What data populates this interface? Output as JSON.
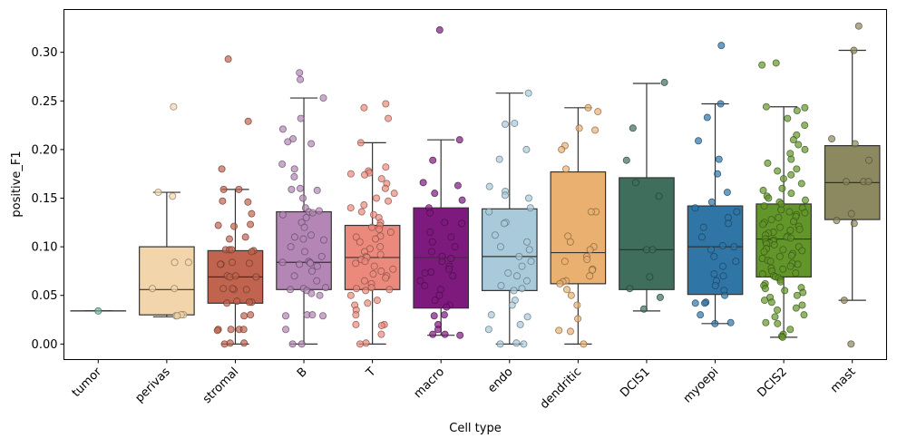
{
  "chart_data": {
    "type": "box",
    "title": "",
    "xlabel": "Cell type",
    "ylabel": "positive_F1",
    "ylim": [
      -0.016,
      0.344
    ],
    "yticks": [
      "0.00",
      "0.05",
      "0.10",
      "0.15",
      "0.20",
      "0.25",
      "0.30"
    ],
    "ytick_values": [
      0,
      0.05,
      0.1,
      0.15,
      0.2,
      0.25,
      0.3
    ],
    "grid": false,
    "categories": [
      "tumor",
      "perivas",
      "stromal",
      "B",
      "T",
      "macro",
      "endo",
      "dendritic",
      "DCIS1",
      "myoepi",
      "DCIS2",
      "mast"
    ],
    "colors": [
      "#6fb89a",
      "#f3d5ab",
      "#c0644f",
      "#b386b5",
      "#eb8a7c",
      "#7e1a7e",
      "#a9cadb",
      "#e9b070",
      "#3f6e5c",
      "#2f75a6",
      "#62962a",
      "#8c8860"
    ],
    "boxes": [
      {
        "whislo": 0.034,
        "q1": 0.034,
        "med": 0.034,
        "q3": 0.034,
        "whishi": 0.034
      },
      {
        "whislo": 0.028,
        "q1": 0.03,
        "med": 0.056,
        "q3": 0.1,
        "whishi": 0.156
      },
      {
        "whislo": 0.0,
        "q1": 0.042,
        "med": 0.069,
        "q3": 0.096,
        "whishi": 0.159
      },
      {
        "whislo": 0.0,
        "q1": 0.056,
        "med": 0.084,
        "q3": 0.136,
        "whishi": 0.253
      },
      {
        "whislo": 0.0,
        "q1": 0.056,
        "med": 0.089,
        "q3": 0.122,
        "whishi": 0.207
      },
      {
        "whislo": 0.009,
        "q1": 0.037,
        "med": 0.089,
        "q3": 0.14,
        "whishi": 0.21
      },
      {
        "whislo": 0.0,
        "q1": 0.055,
        "med": 0.09,
        "q3": 0.139,
        "whishi": 0.258
      },
      {
        "whislo": 0.0,
        "q1": 0.062,
        "med": 0.094,
        "q3": 0.177,
        "whishi": 0.243
      },
      {
        "whislo": 0.034,
        "q1": 0.056,
        "med": 0.097,
        "q3": 0.171,
        "whishi": 0.268
      },
      {
        "whislo": 0.021,
        "q1": 0.051,
        "med": 0.1,
        "q3": 0.142,
        "whishi": 0.247
      },
      {
        "whislo": 0.007,
        "q1": 0.069,
        "med": 0.108,
        "q3": 0.144,
        "whishi": 0.244
      },
      {
        "whislo": 0.045,
        "q1": 0.128,
        "med": 0.166,
        "q3": 0.204,
        "whishi": 0.302
      }
    ],
    "points": [
      [
        0.034
      ],
      [
        0.244,
        0.156,
        0.152,
        0.084,
        0.084,
        0.057,
        0.057,
        0.03,
        0.029,
        0.03,
        0.029
      ],
      [
        0.293,
        0.229,
        0.18,
        0.159,
        0.159,
        0.147,
        0.146,
        0.134,
        0.123,
        0.122,
        0.121,
        0.11,
        0.108,
        0.097,
        0.097,
        0.096,
        0.095,
        0.097,
        0.084,
        0.083,
        0.082,
        0.082,
        0.07,
        0.069,
        0.07,
        0.069,
        0.056,
        0.056,
        0.057,
        0.057,
        0.043,
        0.043,
        0.042,
        0.044,
        0.03,
        0.029,
        0.015,
        0.015,
        0.014,
        0.015,
        0.015,
        0.001,
        0.0,
        0.001
      ],
      [
        0.279,
        0.272,
        0.253,
        0.232,
        0.221,
        0.211,
        0.208,
        0.206,
        0.185,
        0.18,
        0.172,
        0.16,
        0.159,
        0.158,
        0.15,
        0.14,
        0.137,
        0.136,
        0.135,
        0.133,
        0.13,
        0.125,
        0.12,
        0.112,
        0.11,
        0.108,
        0.107,
        0.1,
        0.095,
        0.09,
        0.085,
        0.084,
        0.084,
        0.083,
        0.082,
        0.08,
        0.075,
        0.07,
        0.065,
        0.058,
        0.057,
        0.056,
        0.055,
        0.052,
        0.05,
        0.03,
        0.03,
        0.029,
        0.029,
        0.015,
        0.0,
        0.0
      ],
      [
        0.247,
        0.243,
        0.232,
        0.207,
        0.182,
        0.178,
        0.176,
        0.175,
        0.174,
        0.17,
        0.165,
        0.16,
        0.155,
        0.15,
        0.147,
        0.143,
        0.14,
        0.136,
        0.133,
        0.13,
        0.125,
        0.122,
        0.12,
        0.118,
        0.115,
        0.111,
        0.11,
        0.108,
        0.105,
        0.1,
        0.098,
        0.095,
        0.092,
        0.09,
        0.089,
        0.087,
        0.085,
        0.083,
        0.08,
        0.077,
        0.075,
        0.072,
        0.07,
        0.068,
        0.065,
        0.062,
        0.058,
        0.057,
        0.056,
        0.055,
        0.05,
        0.045,
        0.042,
        0.04,
        0.035,
        0.03,
        0.02,
        0.02,
        0.019,
        0.01,
        0.001,
        0.0
      ],
      [
        0.323,
        0.21,
        0.189,
        0.166,
        0.163,
        0.155,
        0.148,
        0.14,
        0.135,
        0.125,
        0.124,
        0.115,
        0.11,
        0.105,
        0.1,
        0.095,
        0.09,
        0.088,
        0.085,
        0.08,
        0.077,
        0.074,
        0.073,
        0.07,
        0.065,
        0.06,
        0.056,
        0.05,
        0.045,
        0.04,
        0.038,
        0.03,
        0.029,
        0.02,
        0.015,
        0.01,
        0.01,
        0.009
      ],
      [
        0.258,
        0.227,
        0.226,
        0.2,
        0.19,
        0.162,
        0.157,
        0.153,
        0.15,
        0.14,
        0.136,
        0.125,
        0.124,
        0.112,
        0.105,
        0.1,
        0.097,
        0.09,
        0.085,
        0.08,
        0.073,
        0.07,
        0.065,
        0.06,
        0.057,
        0.055,
        0.045,
        0.04,
        0.03,
        0.028,
        0.02,
        0.015,
        0.001,
        0.0,
        0.0
      ],
      [
        0.243,
        0.239,
        0.222,
        0.22,
        0.204,
        0.2,
        0.18,
        0.136,
        0.136,
        0.111,
        0.105,
        0.1,
        0.097,
        0.09,
        0.087,
        0.085,
        0.077,
        0.076,
        0.07,
        0.065,
        0.064,
        0.062,
        0.056,
        0.05,
        0.04,
        0.026,
        0.014,
        0.013,
        0.0
      ],
      [
        0.269,
        0.222,
        0.189,
        0.166,
        0.152,
        0.097,
        0.097,
        0.069,
        0.057,
        0.048,
        0.036
      ],
      [
        0.307,
        0.247,
        0.233,
        0.209,
        0.19,
        0.175,
        0.156,
        0.146,
        0.14,
        0.136,
        0.13,
        0.124,
        0.12,
        0.11,
        0.101,
        0.1,
        0.097,
        0.09,
        0.085,
        0.08,
        0.072,
        0.07,
        0.065,
        0.06,
        0.055,
        0.05,
        0.043,
        0.042,
        0.042,
        0.03,
        0.022,
        0.021
      ],
      [
        0.289,
        0.287,
        0.244,
        0.243,
        0.24,
        0.232,
        0.225,
        0.215,
        0.21,
        0.205,
        0.2,
        0.196,
        0.19,
        0.186,
        0.18,
        0.178,
        0.174,
        0.17,
        0.165,
        0.16,
        0.158,
        0.155,
        0.152,
        0.15,
        0.148,
        0.146,
        0.144,
        0.142,
        0.14,
        0.138,
        0.136,
        0.135,
        0.133,
        0.131,
        0.13,
        0.128,
        0.126,
        0.125,
        0.123,
        0.121,
        0.12,
        0.118,
        0.117,
        0.115,
        0.114,
        0.112,
        0.111,
        0.11,
        0.109,
        0.108,
        0.107,
        0.106,
        0.105,
        0.104,
        0.103,
        0.102,
        0.1,
        0.098,
        0.097,
        0.096,
        0.095,
        0.093,
        0.091,
        0.09,
        0.088,
        0.086,
        0.085,
        0.083,
        0.082,
        0.08,
        0.078,
        0.077,
        0.075,
        0.073,
        0.072,
        0.07,
        0.069,
        0.068,
        0.066,
        0.064,
        0.062,
        0.06,
        0.058,
        0.057,
        0.055,
        0.053,
        0.05,
        0.048,
        0.045,
        0.043,
        0.04,
        0.037,
        0.035,
        0.03,
        0.028,
        0.022,
        0.021,
        0.015,
        0.01,
        0.008,
        0.007
      ],
      [
        0.327,
        0.302,
        0.211,
        0.206,
        0.189,
        0.167,
        0.167,
        0.167,
        0.134,
        0.127,
        0.124,
        0.045,
        0.0
      ]
    ]
  }
}
